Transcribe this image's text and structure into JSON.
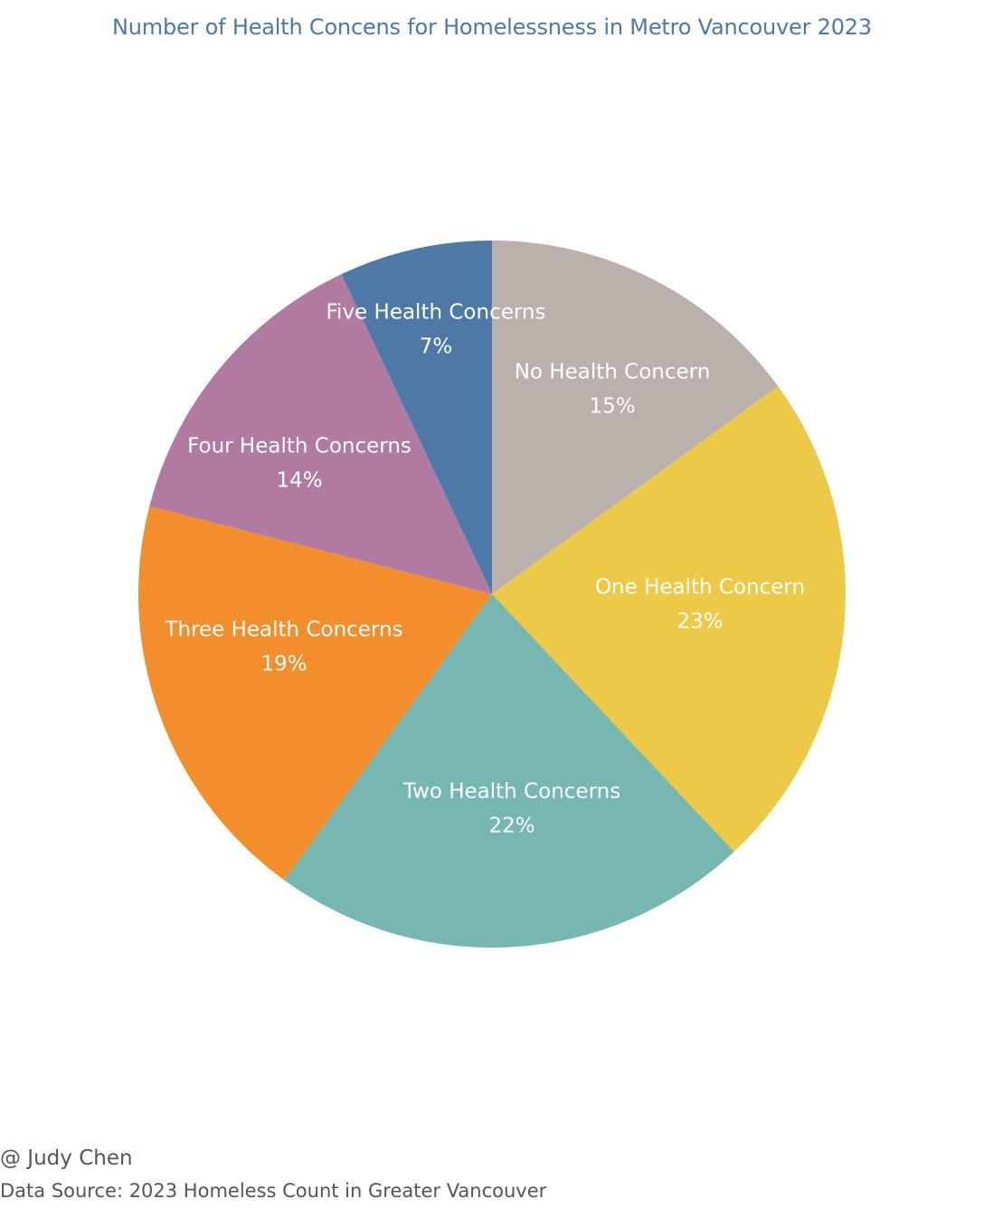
{
  "chart_data": {
    "type": "pie",
    "title": "Number of Health Concens for Homelessness in Metro Vancouver 2023",
    "start_angle_deg": 0,
    "direction": "clockwise",
    "slices": [
      {
        "label": "No Health Concern",
        "value": 15,
        "value_label": "15%",
        "color": "#bab0ac"
      },
      {
        "label": "One Health Concern",
        "value": 23,
        "value_label": "23%",
        "color": "#edc948"
      },
      {
        "label": "Two Health Concerns",
        "value": 22,
        "value_label": "22%",
        "color": "#76b7b2"
      },
      {
        "label": "Three Health Concerns",
        "value": 19,
        "value_label": "19%",
        "color": "#f28e2b"
      },
      {
        "label": "Four Health Concerns",
        "value": 14,
        "value_label": "14%",
        "color": "#b07aa1"
      },
      {
        "label": "Five Health Concerns",
        "value": 7,
        "value_label": "7%",
        "color": "#4e79a7"
      }
    ]
  },
  "footer": {
    "credit": "@ Judy Chen",
    "source": "Data Source: 2023 Homeless Count in Greater Vancouver"
  }
}
